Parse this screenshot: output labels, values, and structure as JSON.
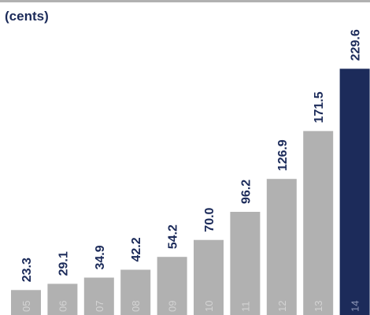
{
  "chart_data": {
    "type": "bar",
    "unit_label": "(cents)",
    "categories": [
      "05",
      "06",
      "07",
      "08",
      "09",
      "10",
      "11",
      "12",
      "13",
      "14"
    ],
    "values": [
      23.3,
      29.1,
      34.9,
      42.2,
      54.2,
      70.0,
      96.2,
      126.9,
      171.5,
      229.6
    ],
    "value_labels": [
      "23.3",
      "29.1",
      "34.9",
      "42.2",
      "54.2",
      "70.0",
      "96.2",
      "126.9",
      "171.5",
      "229.6"
    ],
    "highlight_index": 9,
    "colors": {
      "bar": "#b1b1b1",
      "highlight_bar": "#1c2b5a",
      "label_text": "#1c2b5a",
      "category_text_on_grey": "#d4d4d4",
      "category_text_on_highlight": "#8a93b4",
      "top_rule": "#b1b1b1"
    }
  }
}
